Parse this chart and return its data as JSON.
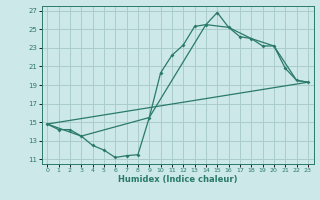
{
  "xlabel": "Humidex (Indice chaleur)",
  "xlim": [
    -0.5,
    23.5
  ],
  "ylim": [
    10.5,
    27.5
  ],
  "xticks": [
    0,
    1,
    2,
    3,
    4,
    5,
    6,
    7,
    8,
    9,
    10,
    11,
    12,
    13,
    14,
    15,
    16,
    17,
    18,
    19,
    20,
    21,
    22,
    23
  ],
  "yticks": [
    11,
    13,
    15,
    17,
    19,
    21,
    23,
    25,
    27
  ],
  "bg_color": "#cce8e8",
  "grid_color": "#aacccc",
  "line_color": "#2a7a6a",
  "line1_x": [
    0,
    1,
    2,
    3,
    4,
    5,
    6,
    7,
    8,
    9,
    10,
    11,
    12,
    13,
    14,
    15,
    16,
    17,
    18,
    19,
    20,
    21,
    22,
    23
  ],
  "line1_y": [
    14.8,
    14.2,
    14.2,
    13.5,
    12.5,
    12.0,
    11.2,
    11.4,
    11.5,
    15.5,
    20.3,
    22.2,
    23.3,
    25.3,
    25.5,
    26.8,
    25.2,
    24.2,
    24.0,
    23.2,
    23.2,
    20.8,
    19.5,
    19.3
  ],
  "line2_x": [
    0,
    3,
    9,
    14,
    16,
    18,
    20,
    22,
    23
  ],
  "line2_y": [
    14.8,
    13.5,
    15.5,
    25.5,
    25.2,
    24.0,
    23.2,
    19.5,
    19.3
  ],
  "line3_x": [
    0,
    23
  ],
  "line3_y": [
    14.8,
    19.3
  ]
}
